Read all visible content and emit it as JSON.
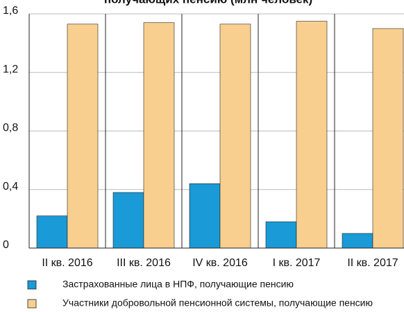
{
  "chart_data": {
    "type": "bar",
    "title": "получающих пенсию (млн человек)",
    "categories": [
      "II кв. 2016",
      "III кв. 2016",
      "IV кв. 2016",
      "I кв. 2017",
      "II кв. 2017"
    ],
    "series": [
      {
        "name": "Застрахованные лица в НПФ, получающие пенсию",
        "color": "#1a9ad6",
        "values": [
          0.22,
          0.38,
          0.44,
          0.18,
          0.1
        ]
      },
      {
        "name": "Участники добровольной пенсионной системы, получающие пенсию",
        "color": "#f8cf8f",
        "values": [
          1.53,
          1.54,
          1.53,
          1.55,
          1.5
        ]
      }
    ],
    "ylim": [
      0,
      1.6
    ],
    "yticks": [
      0,
      {
        "value": 0.4,
        "label": "0,4"
      },
      {
        "value": 0.8,
        "label": "0,8"
      },
      {
        "value": 1.2,
        "label": "1,2"
      },
      {
        "value": 1.6,
        "label": "1,6"
      }
    ],
    "grid": true
  }
}
